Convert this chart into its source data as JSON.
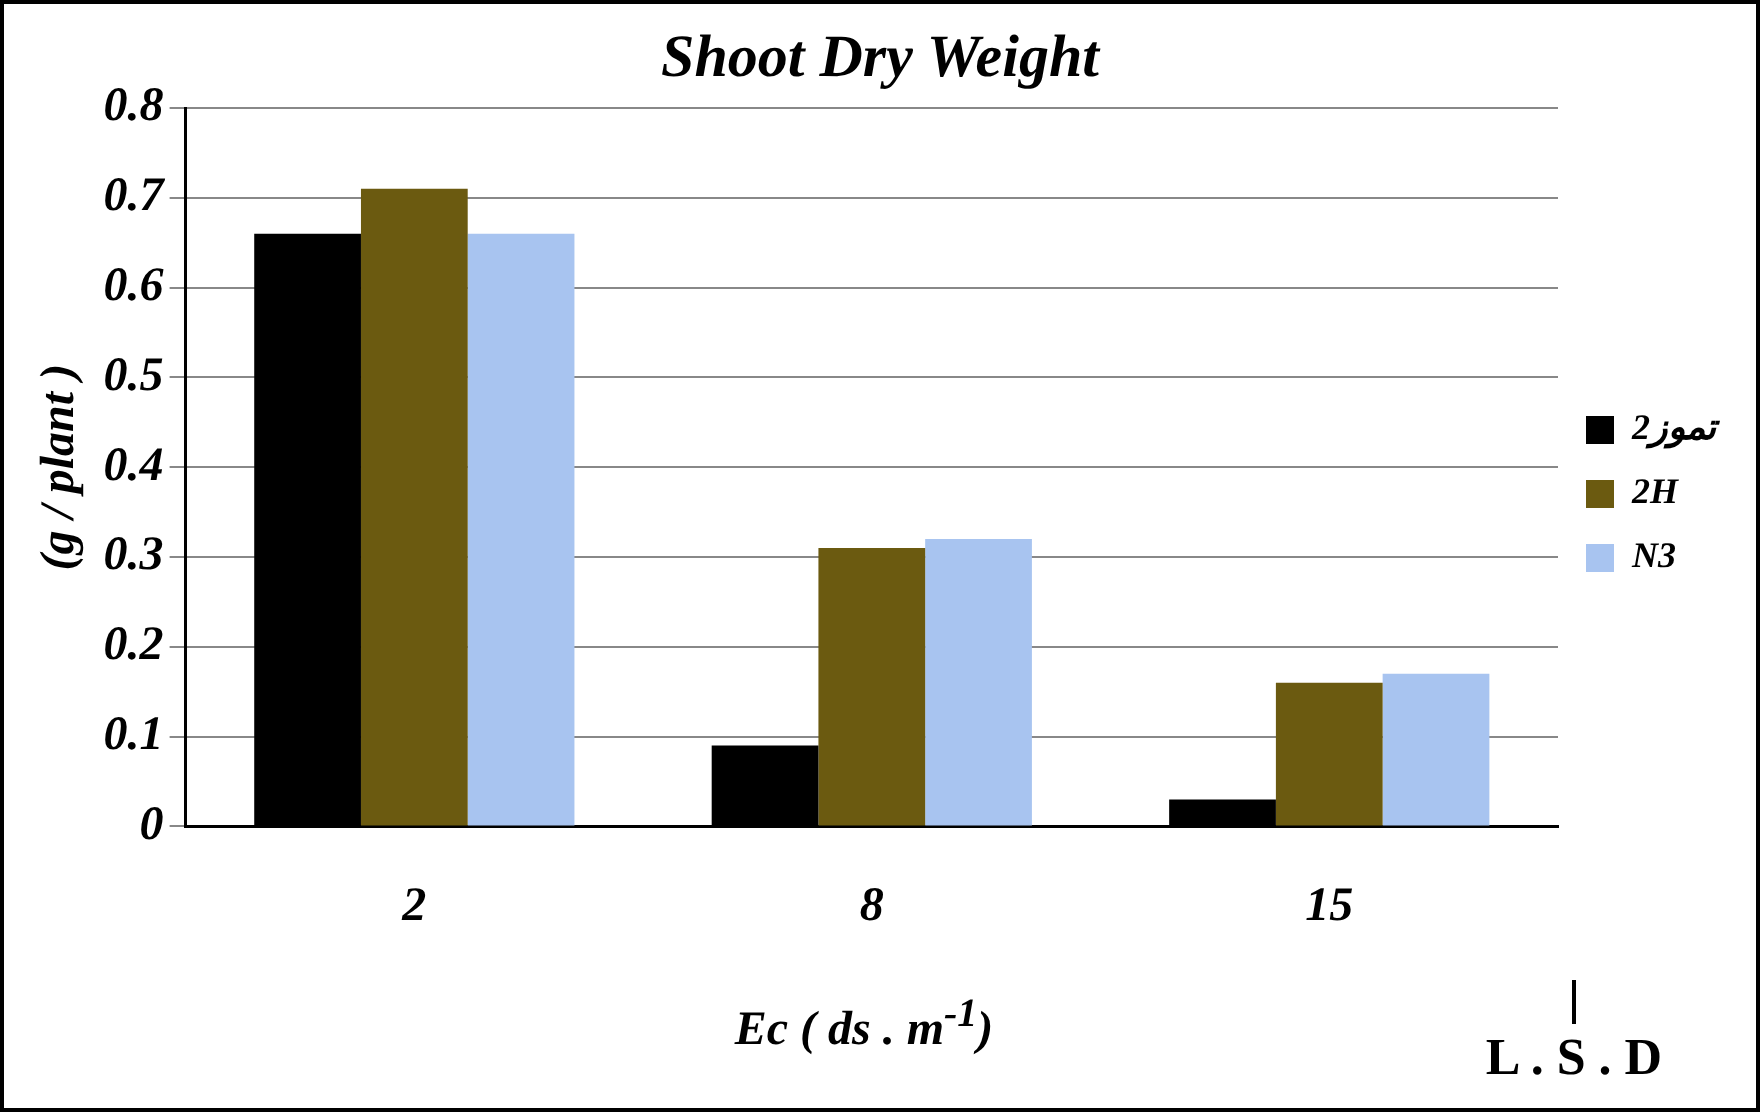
{
  "chart_data": {
    "type": "bar",
    "title": "Shoot Dry Weight",
    "xlabel": "Ec ( ds . m$^{-1}$)",
    "ylabel": "(g / plant )",
    "categories": [
      "2",
      "8",
      "15"
    ],
    "series": [
      {
        "name": "تموز2",
        "color": "#000000",
        "values": [
          0.66,
          0.09,
          0.03
        ]
      },
      {
        "name": "2H",
        "color": "#6b5a10",
        "values": [
          0.71,
          0.31,
          0.16
        ]
      },
      {
        "name": "N3",
        "color": "#a8c4f0",
        "values": [
          0.66,
          0.32,
          0.17
        ]
      }
    ],
    "ylim": [
      0,
      0.8
    ],
    "yticks": [
      0,
      0.1,
      0.2,
      0.3,
      0.4,
      0.5,
      0.6,
      0.7,
      0.8
    ],
    "grid": "y",
    "legend": "right",
    "annotations": [
      "L . S . D"
    ]
  }
}
